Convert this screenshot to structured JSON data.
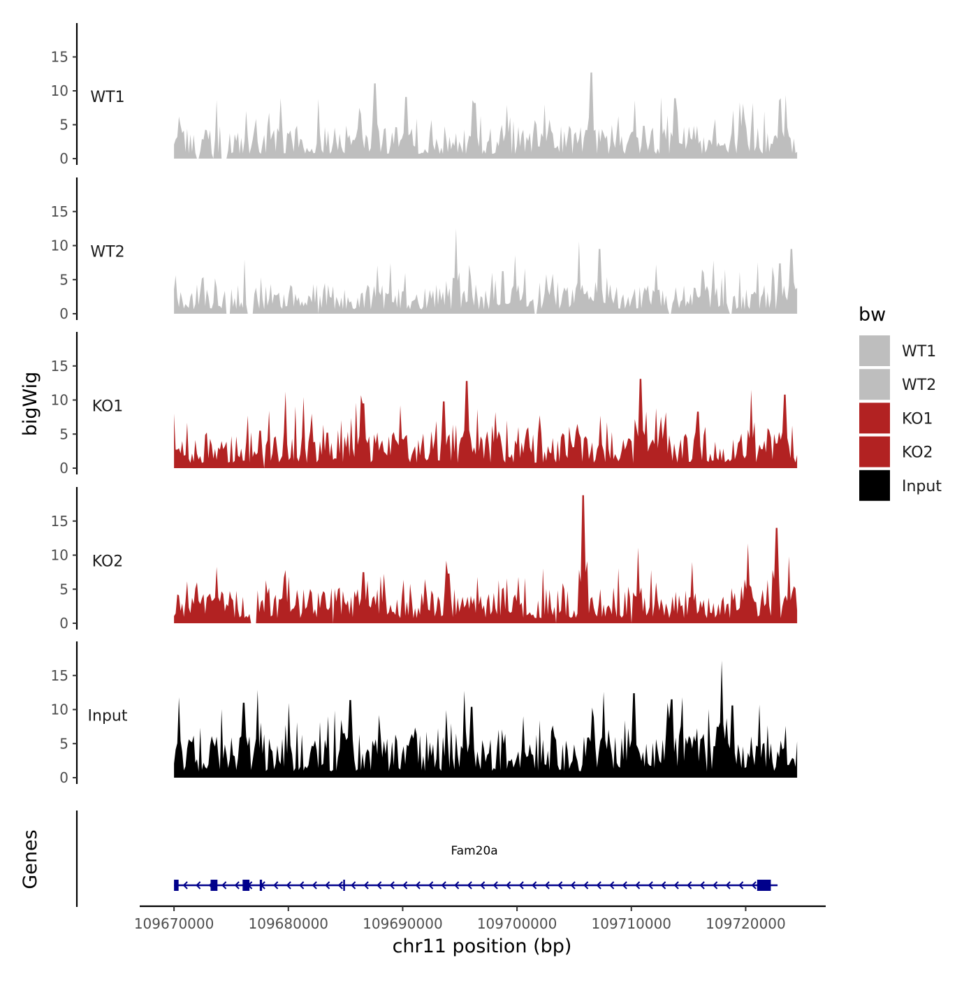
{
  "chart_data": {
    "type": "area",
    "chromosome": "chr11",
    "xlabel": "chr11 position (bp)",
    "ylabel": "bigWig",
    "genes_label": "Genes",
    "xlim": [
      109667000,
      109727000
    ],
    "data_range": [
      109670000,
      109724500
    ],
    "x_ticks": [
      109670000,
      109680000,
      109690000,
      109700000,
      109710000,
      109720000
    ],
    "x_tick_labels": [
      "109670000",
      "109680000",
      "109690000",
      "109700000",
      "109710000",
      "109720000"
    ],
    "ylim": [
      0,
      20
    ],
    "y_ticks": [
      0,
      5,
      10,
      15
    ],
    "y_tick_labels": [
      "0",
      "5",
      "10",
      "15"
    ],
    "legend": {
      "title": "bw",
      "entries": [
        {
          "label": "WT1",
          "color": "#bebebe"
        },
        {
          "label": "WT2",
          "color": "#bebebe"
        },
        {
          "label": "KO1",
          "color": "#b22222"
        },
        {
          "label": "KO2",
          "color": "#b22222"
        },
        {
          "label": "Input",
          "color": "#000000"
        }
      ]
    },
    "series": [
      {
        "name": "WT1",
        "color": "#bebebe",
        "max": 12.7,
        "baseline": 2.8,
        "gaps": [
          [
            109672000,
            109672200
          ],
          [
            109673300,
            109673500
          ],
          [
            109674100,
            109674700
          ]
        ],
        "peaks": [
          [
            109670400,
            6.2
          ],
          [
            109686200,
            7.5
          ],
          [
            109687600,
            11.1
          ],
          [
            109690300,
            9.1
          ],
          [
            109696300,
            8.2
          ],
          [
            109699100,
            7.9
          ],
          [
            109702400,
            8.0
          ],
          [
            109706500,
            12.7
          ],
          [
            109710300,
            8.6
          ],
          [
            109713800,
            8.9
          ],
          [
            109719800,
            8.1
          ],
          [
            109723500,
            9.4
          ]
        ]
      },
      {
        "name": "WT2",
        "color": "#bebebe",
        "max": 12.5,
        "baseline": 2.5,
        "gaps": [
          [
            109674500,
            109675000
          ],
          [
            109676400,
            109677000
          ],
          [
            109682500,
            109682700
          ],
          [
            109701500,
            109701800
          ],
          [
            109713300,
            109713500
          ],
          [
            109718500,
            109718900
          ]
        ],
        "peaks": [
          [
            109687800,
            7.1
          ],
          [
            109694700,
            12.5
          ],
          [
            109699800,
            8.6
          ],
          [
            109705400,
            10.6
          ],
          [
            109707200,
            9.5
          ],
          [
            109712200,
            7.2
          ],
          [
            109716200,
            6.5
          ],
          [
            109723000,
            7.4
          ],
          [
            109724000,
            9.5
          ]
        ]
      },
      {
        "name": "KO1",
        "color": "#b22222",
        "max": 13.1,
        "baseline": 3.1,
        "gaps": [
          [
            109677800,
            109678000
          ]
        ],
        "peaks": [
          [
            109677500,
            5.5
          ],
          [
            109683400,
            5.2
          ],
          [
            109686600,
            9.5
          ],
          [
            109689800,
            9.2
          ],
          [
            109693600,
            9.8
          ],
          [
            109695600,
            12.8
          ],
          [
            109701000,
            6.0
          ],
          [
            109705300,
            6.5
          ],
          [
            109707300,
            7.7
          ],
          [
            109710800,
            13.1
          ],
          [
            109712200,
            8.8
          ],
          [
            109715800,
            8.3
          ],
          [
            109720500,
            11.5
          ],
          [
            109723400,
            10.8
          ]
        ]
      },
      {
        "name": "KO2",
        "color": "#b22222",
        "max": 18.8,
        "baseline": 3.0,
        "gaps": [
          [
            109676600,
            109677200
          ],
          [
            109683900,
            109684000
          ],
          [
            109703400,
            109703500
          ],
          [
            109710000,
            109710100
          ]
        ],
        "peaks": [
          [
            109670400,
            4.1
          ],
          [
            109672000,
            6.0
          ],
          [
            109679600,
            6.7
          ],
          [
            109686600,
            7.5
          ],
          [
            109694000,
            7.3
          ],
          [
            109700100,
            6.8
          ],
          [
            109705800,
            18.8
          ],
          [
            109710600,
            11.1
          ],
          [
            109715300,
            9.0
          ],
          [
            109720200,
            11.7
          ],
          [
            109722700,
            14.0
          ],
          [
            109723800,
            9.8
          ]
        ]
      },
      {
        "name": "Input",
        "color": "#000000",
        "max": 17.2,
        "baseline": 3.7,
        "gaps": [],
        "peaks": [
          [
            109670400,
            11.8
          ],
          [
            109676100,
            11.0
          ],
          [
            109677300,
            12.9
          ],
          [
            109685400,
            11.4
          ],
          [
            109696000,
            10.4
          ],
          [
            109706600,
            10.3
          ],
          [
            109707600,
            12.6
          ],
          [
            109710200,
            12.4
          ],
          [
            109713500,
            11.5
          ],
          [
            109717900,
            17.2
          ],
          [
            109718800,
            10.6
          ]
        ]
      }
    ],
    "gene": {
      "name": "Fam20a",
      "color": "#00008b",
      "strand": "-",
      "start": 109670000,
      "end": 109722300,
      "exons": [
        [
          109670000,
          109670400
        ],
        [
          109673200,
          109673800
        ],
        [
          109676000,
          109676600
        ],
        [
          109677500,
          109677700
        ],
        [
          109684800,
          109684900
        ],
        [
          109721000,
          109722200
        ]
      ]
    }
  }
}
